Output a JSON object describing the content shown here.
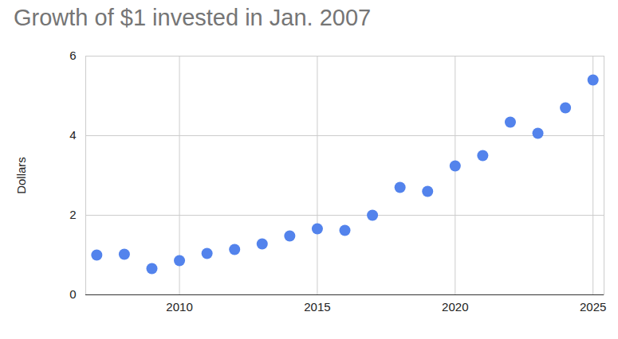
{
  "chart_data": {
    "type": "scatter",
    "title": "Growth of $1 invested in Jan. 2007",
    "y_label": "Dollars",
    "x": [
      2007,
      2008,
      2009,
      2010,
      2011,
      2012,
      2013,
      2014,
      2015,
      2016,
      2017,
      2018,
      2019,
      2020,
      2021,
      2022,
      2023,
      2024,
      2025
    ],
    "values": [
      1.0,
      1.02,
      0.66,
      0.86,
      1.04,
      1.14,
      1.28,
      1.48,
      1.66,
      1.62,
      2.0,
      2.7,
      2.6,
      3.24,
      3.5,
      4.34,
      4.06,
      4.7,
      5.4
    ],
    "color": "#5383ec",
    "xlim": [
      2006.6,
      2025.4
    ],
    "xticks": [
      2010,
      2015,
      2020,
      2025
    ],
    "ylim": [
      0,
      6
    ],
    "yticks": [
      0,
      2,
      4,
      6
    ],
    "grid": true
  }
}
